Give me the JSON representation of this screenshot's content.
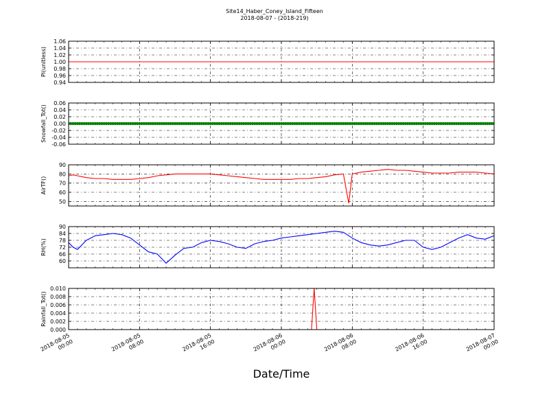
{
  "title": {
    "line1": "Site14_Haber_Coney_Island_Fifteen",
    "line2": "2018-08-07 - (2018-219)"
  },
  "xlabel": "Date/Time",
  "x_ticks": [
    [
      "2018-08-05",
      "00:00"
    ],
    [
      "2018-08-05",
      "08:00"
    ],
    [
      "2018-08-05",
      "16:00"
    ],
    [
      "2018-08-06",
      "00:00"
    ],
    [
      "2018-08-06",
      "08:00"
    ],
    [
      "2018-08-06",
      "16:00"
    ],
    [
      "2018-08-07",
      "00:00"
    ]
  ],
  "colors": {
    "plunitless": "#ff0000",
    "snowfall": "#008000",
    "airtf": "#ff0000",
    "rh": "#0000ff",
    "rainfall": "#ff0000"
  },
  "chart_data": [
    {
      "type": "line",
      "ylabel": "Pl(unitless)",
      "ylim": [
        0.94,
        1.06
      ],
      "yticks": [
        "0.94",
        "0.96",
        "0.98",
        "1.00",
        "1.02",
        "1.04",
        "1.06"
      ],
      "grid": true,
      "series": [
        {
          "x_hours": [
            0,
            48
          ],
          "values": [
            1.0,
            1.0
          ]
        }
      ]
    },
    {
      "type": "scatter",
      "ylabel": "Snowfall_Tot()",
      "ylim": [
        -0.06,
        0.06
      ],
      "yticks": [
        "-0.06",
        "-0.04",
        "-0.02",
        "0.00",
        "0.02",
        "0.04",
        "0.06"
      ],
      "grid": true,
      "series": [
        {
          "x_hours": [
            0,
            48
          ],
          "values": [
            0.0,
            0.0
          ]
        }
      ]
    },
    {
      "type": "line",
      "ylabel": "AirTF()",
      "ylim": [
        45,
        90
      ],
      "yticks": [
        "50",
        "60",
        "70",
        "80",
        "90"
      ],
      "grid": true,
      "series": [
        {
          "x_hours": [
            0,
            0.5,
            1,
            1.5,
            2,
            3,
            4,
            5,
            6,
            7,
            8,
            9,
            10,
            11,
            12,
            13,
            14,
            15,
            16,
            17,
            18,
            19,
            20,
            21,
            22,
            23,
            24,
            25,
            26,
            27,
            28,
            29,
            30,
            31,
            31.6,
            32,
            32.5,
            33,
            34,
            35,
            36,
            37,
            38,
            39,
            40,
            41,
            42,
            43,
            44,
            45,
            46,
            47,
            48
          ],
          "values": [
            78,
            79,
            78,
            77,
            76,
            75,
            75,
            74,
            74,
            74,
            75,
            76,
            78,
            79,
            80,
            80,
            80,
            80,
            80,
            79,
            78,
            77,
            76,
            75,
            74,
            74,
            74,
            74,
            75,
            75,
            76,
            77,
            79,
            80,
            48,
            80,
            81,
            82,
            83,
            84,
            85,
            84,
            84,
            83,
            82,
            81,
            81,
            81,
            82,
            82,
            82,
            81,
            80
          ]
        }
      ]
    },
    {
      "type": "line",
      "ylabel": "RH(%)",
      "ylim": [
        54,
        90
      ],
      "yticks": [
        "60",
        "66",
        "72",
        "78",
        "84",
        "90"
      ],
      "grid": true,
      "series": [
        {
          "x_hours": [
            0,
            0.5,
            1,
            2,
            3,
            4,
            5,
            6,
            7,
            8,
            9,
            10,
            11,
            12,
            13,
            14,
            15,
            16,
            17,
            18,
            19,
            20,
            21,
            22,
            23,
            24,
            25,
            26,
            27,
            28,
            29,
            30,
            31,
            32,
            33,
            34,
            35,
            36,
            37,
            38,
            39,
            40,
            41,
            42,
            43,
            44,
            45,
            46,
            47,
            48
          ],
          "values": [
            76,
            72,
            70,
            78,
            82,
            83,
            84,
            83,
            80,
            74,
            68,
            66,
            58,
            65,
            71,
            72,
            76,
            78,
            77,
            75,
            72,
            71,
            75,
            77,
            78,
            80,
            81,
            82,
            83,
            84,
            85,
            86,
            85,
            80,
            76,
            74,
            73,
            74,
            76,
            78,
            78,
            72,
            70,
            72,
            76,
            80,
            83,
            80,
            79,
            82
          ]
        }
      ]
    },
    {
      "type": "line",
      "ylabel": "Rainfall_Tot()",
      "ylim": [
        0.0,
        0.01
      ],
      "yticks": [
        "0.000",
        "0.002",
        "0.004",
        "0.006",
        "0.008",
        "0.010"
      ],
      "grid": true,
      "series": [
        {
          "x_hours": [
            0,
            27.4,
            27.7,
            28.0,
            48
          ],
          "values": [
            0,
            0,
            0.01,
            0,
            0
          ]
        }
      ]
    }
  ]
}
